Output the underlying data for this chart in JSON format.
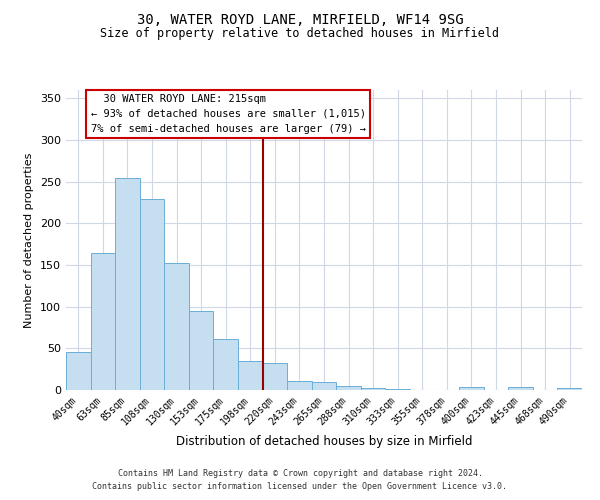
{
  "title1": "30, WATER ROYD LANE, MIRFIELD, WF14 9SG",
  "title2": "Size of property relative to detached houses in Mirfield",
  "xlabel": "Distribution of detached houses by size in Mirfield",
  "ylabel": "Number of detached properties",
  "bin_labels": [
    "40sqm",
    "63sqm",
    "85sqm",
    "108sqm",
    "130sqm",
    "153sqm",
    "175sqm",
    "198sqm",
    "220sqm",
    "243sqm",
    "265sqm",
    "288sqm",
    "310sqm",
    "333sqm",
    "355sqm",
    "378sqm",
    "400sqm",
    "423sqm",
    "445sqm",
    "468sqm",
    "490sqm"
  ],
  "bar_heights": [
    46,
    165,
    254,
    229,
    152,
    95,
    61,
    35,
    33,
    11,
    10,
    5,
    2,
    1,
    0,
    0,
    4,
    0,
    4,
    0,
    2
  ],
  "bar_color": "#c5dff0",
  "bar_edge_color": "#6aaed6",
  "vline_x_index": 8,
  "vline_color": "#990000",
  "annotation_title": "30 WATER ROYD LANE: 215sqm",
  "annotation_line1": "← 93% of detached houses are smaller (1,015)",
  "annotation_line2": "7% of semi-detached houses are larger (79) →",
  "annotation_box_color": "#cc0000",
  "ylim": [
    0,
    360
  ],
  "yticks": [
    0,
    50,
    100,
    150,
    200,
    250,
    300,
    350
  ],
  "footer1": "Contains HM Land Registry data © Crown copyright and database right 2024.",
  "footer2": "Contains public sector information licensed under the Open Government Licence v3.0."
}
